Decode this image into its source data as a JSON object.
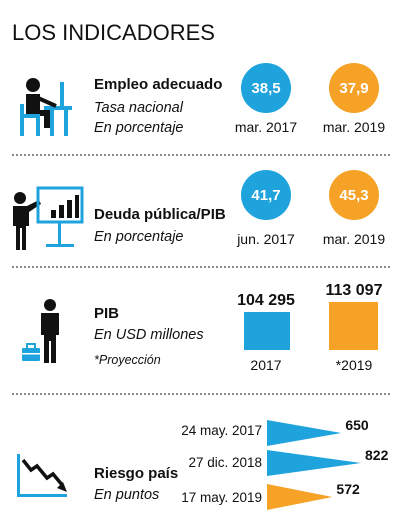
{
  "title": "LOS INDICADORES",
  "colors": {
    "blue": "#1fa3dd",
    "orange": "#f5a227",
    "dark": "#111111",
    "divider": "#8a8a8a"
  },
  "sections": {
    "empleo": {
      "label": "Empleo adecuado",
      "sub1": "Tasa nacional",
      "sub2": "En porcentaje",
      "icon": "person-at-desk-icon"
    },
    "deuda": {
      "label": "Deuda pública/PIB",
      "sub1": "En porcentaje",
      "icon": "presenter-chart-icon"
    },
    "pib": {
      "label": "PIB",
      "sub1": "En USD millones",
      "sub2": "*Proyección",
      "icon": "businessman-briefcase-icon"
    },
    "riesgo": {
      "label": "Riesgo país",
      "sub1": "En puntos",
      "icon": "declining-trend-icon"
    }
  },
  "chart_data": [
    {
      "type": "bar",
      "categories": [
        "mar. 2017",
        "mar. 2019"
      ],
      "values": [
        38.5,
        37.9
      ],
      "value_labels": [
        "38,5",
        "37,9"
      ]
    },
    {
      "type": "bar",
      "categories": [
        "jun. 2017",
        "mar. 2019"
      ],
      "values": [
        41.7,
        45.3
      ],
      "value_labels": [
        "41,7",
        "45,3"
      ]
    },
    {
      "type": "bar",
      "categories": [
        "2017",
        "*2019"
      ],
      "values": [
        104295,
        113097
      ],
      "value_labels": [
        "104 295",
        "113 097"
      ]
    },
    {
      "type": "bar",
      "categories": [
        "24 may. 2017",
        "27 dic. 2018",
        "17 may. 2019"
      ],
      "values": [
        650,
        822,
        572
      ],
      "value_labels": [
        "650",
        "822",
        "572"
      ]
    }
  ]
}
